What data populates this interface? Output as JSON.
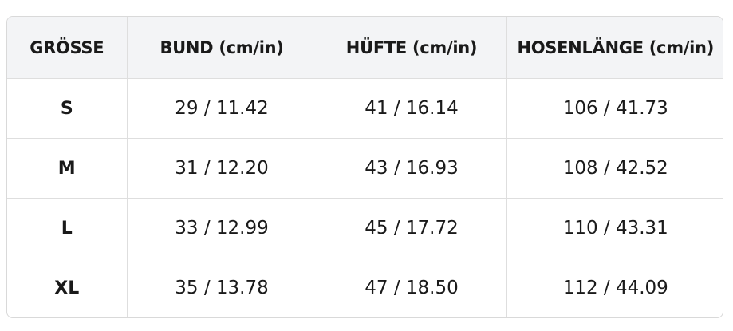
{
  "table": {
    "header": [
      "GRÖSSE",
      "BUND (cm/in)",
      "HÜFTE (cm/in)",
      "HOSENLÄNGE (cm/in)"
    ],
    "rows": [
      [
        "S",
        "29 / 11.42",
        "41 / 16.14",
        "106 / 41.73"
      ],
      [
        "M",
        "31 / 12.20",
        "43 / 16.93",
        "108 / 42.52"
      ],
      [
        "L",
        "33 / 12.99",
        "45 / 17.72",
        "110 / 43.31"
      ],
      [
        "XL",
        "35 / 13.78",
        "47 / 18.50",
        "112 / 44.09"
      ]
    ]
  }
}
